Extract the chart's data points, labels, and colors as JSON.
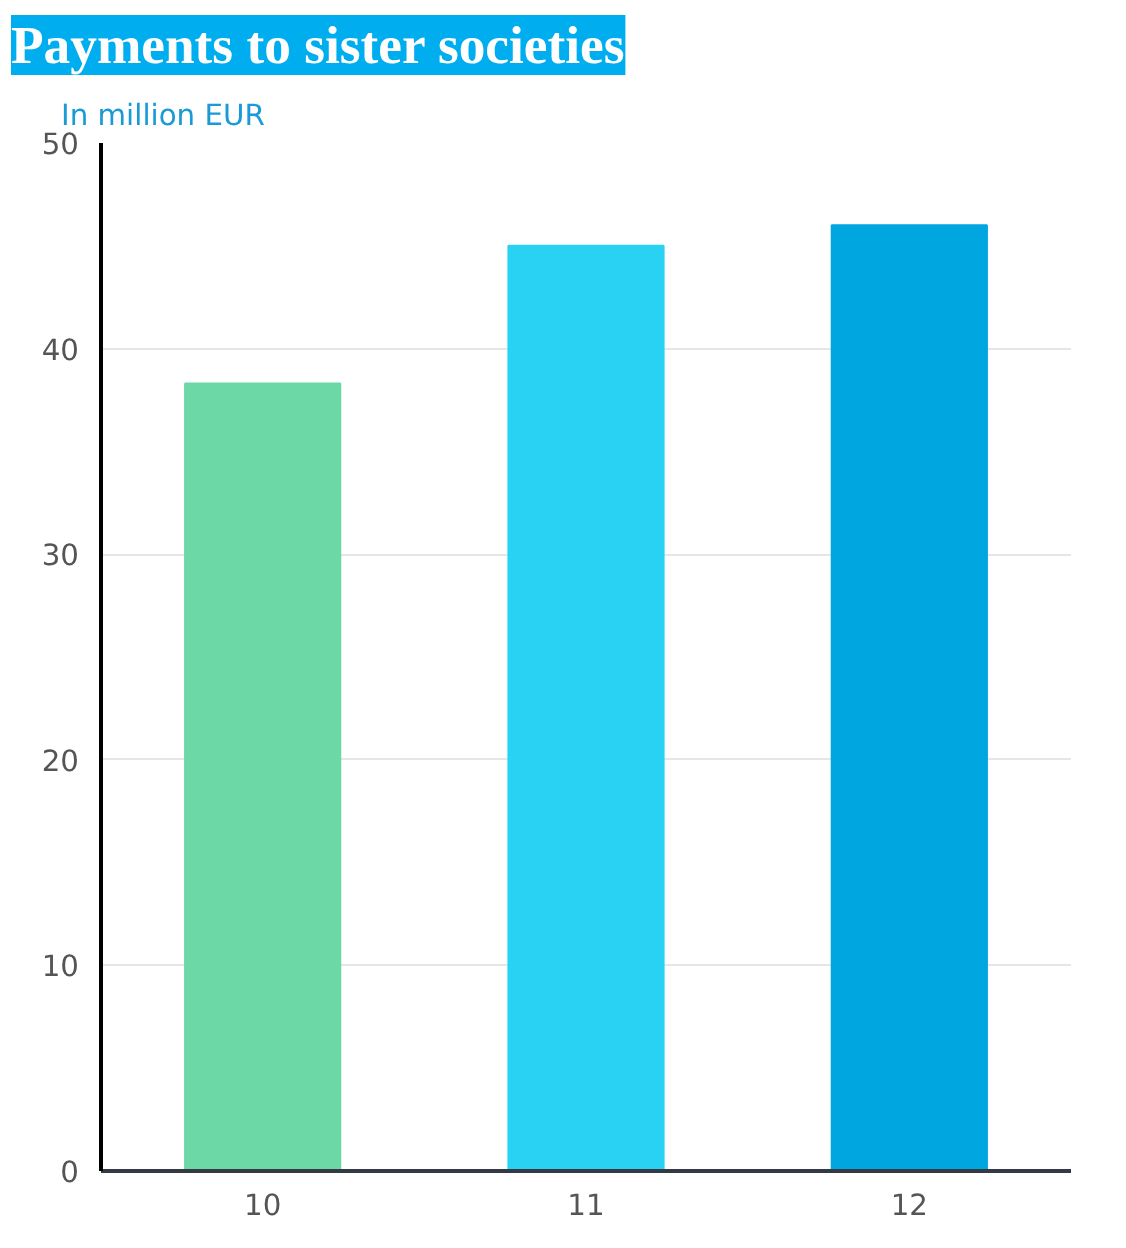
{
  "chart_data": {
    "type": "bar",
    "title": "Payments to sister societies",
    "ylabel": "In million EUR",
    "categories": [
      "10",
      "11",
      "12"
    ],
    "values": [
      38.3,
      45.0,
      46.0
    ],
    "colors": [
      "#6bd8a6",
      "#29d2f2",
      "#00a6df"
    ],
    "ylim": [
      0,
      50
    ],
    "yticks": [
      0,
      10,
      20,
      30,
      40,
      50
    ],
    "grid": "y"
  }
}
